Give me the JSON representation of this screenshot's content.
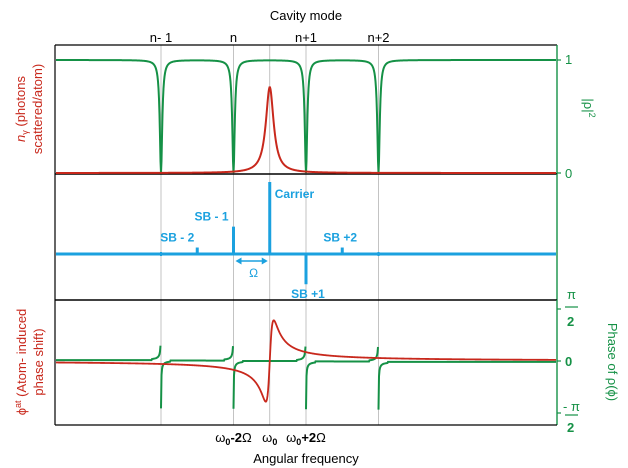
{
  "colors": {
    "transmission": "#159146",
    "photons": "#c8281c",
    "spectrum": "#1ba1df",
    "phase": "#159146",
    "atom_phase": "#c8281c",
    "grid": "#b4b4b4",
    "frame": "#000000"
  },
  "chart_data": [
    {
      "panel": "top",
      "type": "line",
      "top_axis_label": "Cavity mode",
      "top_tick_labels": [
        "n- 1",
        "n",
        "n+1",
        "n+2"
      ],
      "xlim": [
        -3.2,
        3.5
      ],
      "ylabel_left_line1": "n",
      "ylabel_left_sub": "γ",
      "ylabel_left_rest": " (photons",
      "ylabel_left_line2": "scattered/atom)",
      "ylabel_right": "|ρ|",
      "ylabel_right_sup": "2",
      "right_ticks": [
        "1",
        "0"
      ],
      "ylim": [
        0,
        1.05
      ],
      "series": [
        {
          "role": "|ρ|²",
          "color_key": "transmission",
          "shape": "dips to 0 at each cavity mode",
          "dip_positions": [
            -2,
            0,
            2,
            4
          ],
          "dip_width": 0.04,
          "baseline": 1.0
        },
        {
          "role": "nγ",
          "color_key": "photons",
          "shape": "Lorentzian peak at ω0",
          "center": 1.0,
          "peak": 0.76,
          "width": 0.13
        }
      ]
    },
    {
      "panel": "middle",
      "type": "bar",
      "x": [
        -1,
        0,
        1,
        2,
        3
      ],
      "values": [
        0.09,
        0.38,
        1.0,
        -0.42,
        0.09
      ],
      "labels": [
        "SB - 2",
        "SB - 1",
        "Carrier",
        "SB +1",
        "SB +2"
      ],
      "minor_lines_x": [
        -2,
        4
      ],
      "omega_label": "Ω",
      "omega_arrow_between": [
        0,
        1
      ]
    },
    {
      "panel": "bottom",
      "type": "line",
      "ylabel_left_prefix": "ϕ",
      "ylabel_left_sup": "at",
      "ylabel_left_rest": " (Atom- induced",
      "ylabel_left_line2": "phase shift)",
      "ylabel_right": "Phase of ρ(ϕ)",
      "right_ticks": [
        "π",
        "2",
        "0",
        "- π",
        "2"
      ],
      "ylim": [
        -1.6,
        1.6
      ],
      "series": [
        {
          "role": "Phase of ρ(ϕ)",
          "color_key": "phase",
          "shape": "phase jump of π at each cavity mode",
          "jump_positions": [
            -2,
            0,
            2,
            4
          ]
        },
        {
          "role": "ϕat",
          "color_key": "atom_phase",
          "shape": "dispersive curve centred at ω0",
          "center": 1.0,
          "amplitude": 1.5
        }
      ]
    }
  ],
  "x_axis": {
    "label": "Angular frequency",
    "ticks": [
      {
        "pos": 0,
        "omega": "ω",
        "sub": "0",
        "op": "-",
        "mult": "2",
        "unit": "Ω"
      },
      {
        "pos": 1,
        "omega": "ω",
        "sub": "0",
        "op": "",
        "mult": "",
        "unit": ""
      },
      {
        "pos": 2,
        "omega": "ω",
        "sub": "0",
        "op": "+",
        "mult": "2",
        "unit": "Ω"
      }
    ]
  }
}
